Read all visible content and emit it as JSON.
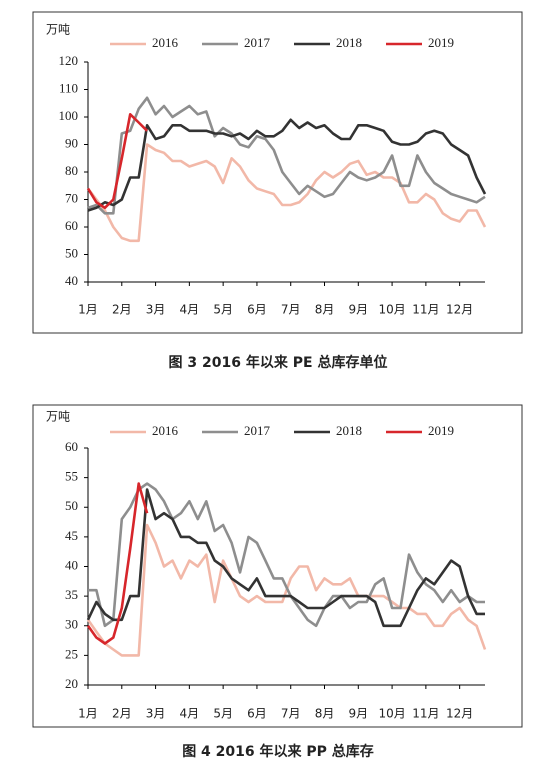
{
  "chart_data": [
    {
      "type": "line",
      "title": "图 3  2016 年以来 PE 总库存单位",
      "y_label": "万吨",
      "categories": [
        "1月",
        null,
        null,
        null,
        "2月",
        null,
        null,
        null,
        "3月",
        null,
        null,
        null,
        "4月",
        null,
        null,
        null,
        "5月",
        null,
        null,
        null,
        "6月",
        null,
        null,
        null,
        "7月",
        null,
        null,
        null,
        "8月",
        null,
        null,
        null,
        "9月",
        null,
        null,
        null,
        "10月",
        null,
        null,
        null,
        "11月",
        null,
        null,
        null,
        "12月",
        null,
        null,
        null
      ],
      "ylim": [
        40,
        120
      ],
      "yticks": [
        40,
        50,
        60,
        70,
        80,
        90,
        100,
        110,
        120
      ],
      "legend": "top",
      "series": [
        {
          "name": "2016",
          "color": "#f2b8a8",
          "values": [
            74,
            70,
            66,
            60,
            56,
            55,
            55,
            90,
            88,
            87,
            84,
            84,
            82,
            83,
            84,
            82,
            76,
            85,
            82,
            77,
            74,
            73,
            72,
            68,
            68,
            69,
            72,
            77,
            80,
            78,
            80,
            83,
            84,
            79,
            80,
            78,
            78,
            76,
            69,
            69,
            72,
            70,
            65,
            63,
            62,
            66,
            66,
            60
          ]
        },
        {
          "name": "2017",
          "color": "#8e8e8e",
          "values": [
            67,
            68,
            65,
            65,
            94,
            95,
            103,
            107,
            101,
            104,
            100,
            102,
            104,
            101,
            102,
            93,
            96,
            94,
            90,
            89,
            93,
            92,
            88,
            80,
            76,
            72,
            75,
            73,
            71,
            72,
            76,
            80,
            78,
            77,
            78,
            80,
            86,
            75,
            75,
            86,
            80,
            76,
            74,
            72,
            71,
            70,
            69,
            71
          ]
        },
        {
          "name": "2018",
          "color": "#333333",
          "values": [
            66,
            67,
            69,
            68,
            70,
            78,
            78,
            97,
            92,
            93,
            97,
            97,
            95,
            95,
            95,
            94,
            94,
            93,
            94,
            92,
            95,
            93,
            93,
            95,
            99,
            96,
            98,
            96,
            97,
            94,
            92,
            92,
            97,
            97,
            96,
            95,
            91,
            90,
            90,
            91,
            94,
            95,
            94,
            90,
            88,
            86,
            78,
            72
          ]
        },
        {
          "name": "2019",
          "color": "#d7262b",
          "values": [
            74,
            69,
            67,
            70,
            85,
            101,
            98,
            95,
            null,
            null,
            null,
            null,
            null,
            null,
            null,
            null,
            null,
            null,
            null,
            null,
            null,
            null,
            null,
            null,
            null,
            null,
            null,
            null,
            null,
            null,
            null,
            null,
            null,
            null,
            null,
            null,
            null,
            null,
            null,
            null,
            null,
            null,
            null,
            null,
            null,
            null,
            null,
            null
          ]
        }
      ]
    },
    {
      "type": "line",
      "title": "图 4  2016 年以来 PP 总库存",
      "y_label": "万吨",
      "categories": [
        "1月",
        null,
        null,
        null,
        "2月",
        null,
        null,
        null,
        "3月",
        null,
        null,
        null,
        "4月",
        null,
        null,
        null,
        "5月",
        null,
        null,
        null,
        "6月",
        null,
        null,
        null,
        "7月",
        null,
        null,
        null,
        "8月",
        null,
        null,
        null,
        "9月",
        null,
        null,
        null,
        "10月",
        null,
        null,
        null,
        "11月",
        null,
        null,
        null,
        "12月",
        null,
        null,
        null
      ],
      "ylim": [
        20,
        60
      ],
      "yticks": [
        20,
        25,
        30,
        35,
        40,
        45,
        50,
        55,
        60
      ],
      "legend": "top",
      "series": [
        {
          "name": "2016",
          "color": "#f2b8a8",
          "values": [
            31,
            29,
            27,
            26,
            25,
            25,
            25,
            47,
            44,
            40,
            41,
            38,
            41,
            40,
            42,
            34,
            41,
            38,
            35,
            34,
            35,
            34,
            34,
            34,
            38,
            40,
            40,
            36,
            38,
            37,
            37,
            38,
            35,
            35,
            35,
            35,
            34,
            33,
            33,
            32,
            32,
            30,
            30,
            32,
            33,
            31,
            30,
            26
          ]
        },
        {
          "name": "2017",
          "color": "#8e8e8e",
          "values": [
            36,
            36,
            30,
            31,
            48,
            50,
            53,
            54,
            53,
            51,
            48,
            49,
            51,
            48,
            51,
            46,
            47,
            44,
            39,
            45,
            44,
            41,
            38,
            38,
            35,
            33,
            31,
            30,
            33,
            35,
            35,
            33,
            34,
            34,
            37,
            38,
            33,
            33,
            42,
            39,
            37,
            36,
            34,
            36,
            34,
            35,
            34,
            34
          ]
        },
        {
          "name": "2018",
          "color": "#333333",
          "values": [
            31,
            34,
            32,
            31,
            31,
            35,
            35,
            53,
            48,
            49,
            48,
            45,
            45,
            44,
            44,
            41,
            40,
            38,
            37,
            36,
            38,
            35,
            35,
            35,
            35,
            34,
            33,
            33,
            33,
            34,
            35,
            35,
            35,
            35,
            34,
            30,
            30,
            30,
            33,
            36,
            38,
            37,
            39,
            41,
            40,
            35,
            32,
            32
          ]
        },
        {
          "name": "2019",
          "color": "#d7262b",
          "values": [
            30,
            28,
            27,
            28,
            33,
            43,
            54,
            49,
            null,
            null,
            null,
            null,
            null,
            null,
            null,
            null,
            null,
            null,
            null,
            null,
            null,
            null,
            null,
            null,
            null,
            null,
            null,
            null,
            null,
            null,
            null,
            null,
            null,
            null,
            null,
            null,
            null,
            null,
            null,
            null,
            null,
            null,
            null,
            null,
            null,
            null,
            null,
            null
          ]
        }
      ]
    }
  ]
}
